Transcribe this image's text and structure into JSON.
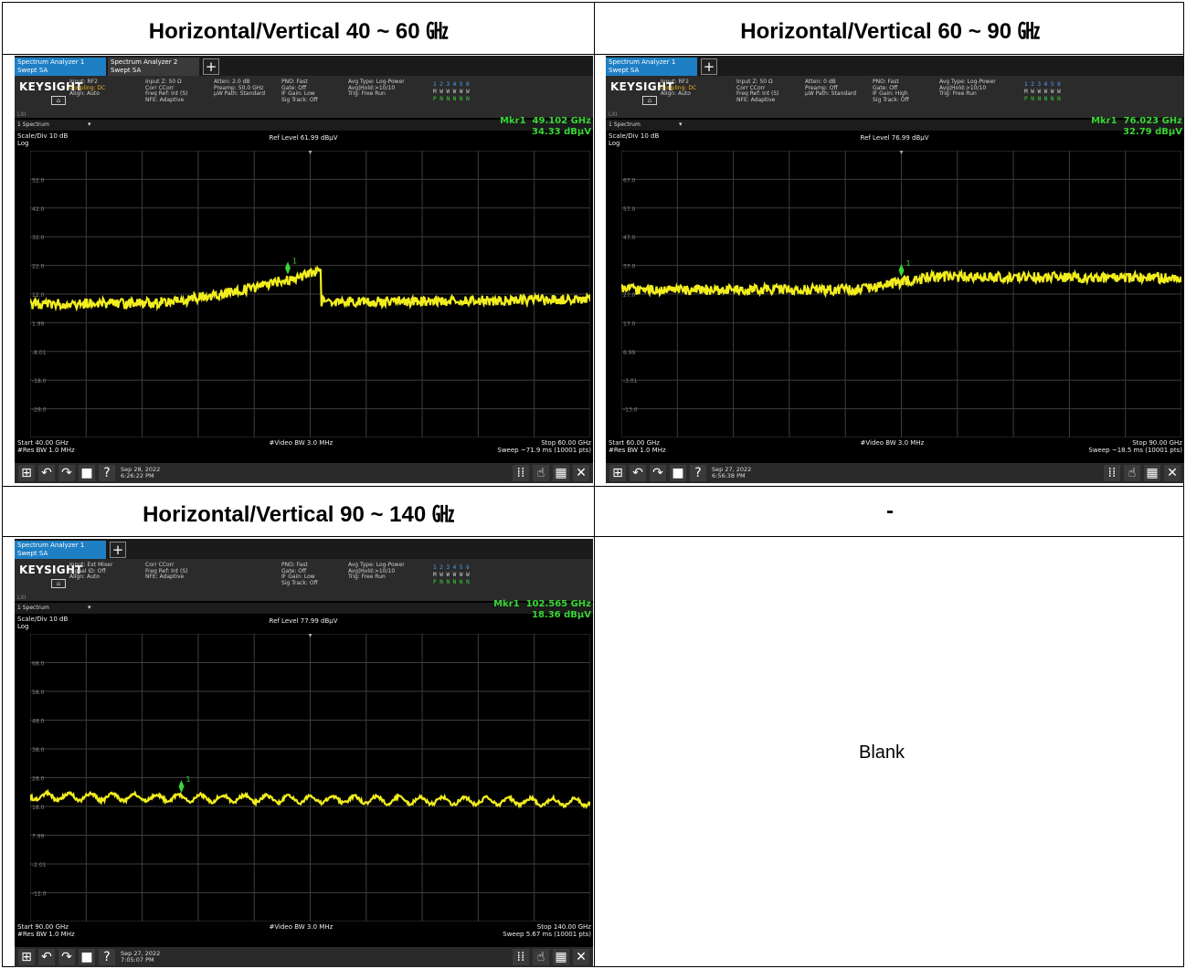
{
  "headers": {
    "h1": "Horizontal/Vertical 40 ~ 60 ㎓",
    "h2": "Horizontal/Vertical 60 ~ 90 ㎓",
    "h3": "Horizontal/Vertical 90 ~ 140 ㎓",
    "h4": "-"
  },
  "blank_text": "Blank",
  "analyzers": [
    {
      "tab1": "Spectrum Analyzer 1\nSwept SA",
      "tab2": "Spectrum Analyzer 2\nSwept SA",
      "logo": "KEYSIGHT",
      "col1": "Input: RF2\nCoupling: DC\nAlign: Auto",
      "col2": "Input Z: 50 Ω\nCorr CCorr\nFreq Ref: Int (S)\nNFE: Adaptive",
      "col3": "Atten: 2.0 dB\nPreamp: 50.0 GHz\nµW Path: Standard",
      "col4": "PNO: Fast\nGate: Off\nIF Gain: Low\nSig Track: Off",
      "col5": "Avg Type: Log-Power\nAvg|Hold:>10/10\nTrig: Free Run",
      "trace_nums": "1 2 3 4 5 6",
      "trace_w": "M W W W W W",
      "trace_p": "P N N N N N",
      "lw": "LXI",
      "window": "1 Spectrum",
      "scale": "Scale/Div 10 dB\nLog",
      "ref": "Ref Level 61.99 dBµV",
      "mkr_freq": "Mkr1  49.102 GHz",
      "mkr_amp": "34.33 dBµV",
      "ylabels": [
        "52.0",
        "42.0",
        "32.0",
        "22.0",
        "12.0",
        "1.99",
        "-8.01",
        "-18.0",
        "-28.0"
      ],
      "start": "Start 40.00 GHz\n#Res BW 1.0 MHz",
      "vbw": "#Video BW 3.0 MHz",
      "stop": "Stop 60.00 GHz\nSweep ~71.9 ms (10001 pts)",
      "date": "Sep 28, 2022\n6:26:22 PM"
    },
    {
      "tab1": "Spectrum Analyzer 1\nSwept SA",
      "logo": "KEYSIGHT",
      "col1": "Input: RF2\nCoupling: DC\nAlign: Auto",
      "col2": "Input Z: 50 Ω\nCorr CCorr\nFreq Ref: Int (S)\nNFE: Adaptive",
      "col3": "Atten: 0 dB\nPreamp: Off\nµW Path: Standard",
      "col4": "PNO: Fast\nGate: Off\nIF Gain: High\nSig Track: Off",
      "col5": "Avg Type: Log-Power\nAvg|Hold:>10/10\nTrig: Free Run",
      "trace_nums": "1 2 3 4 5 6",
      "trace_w": "M W W W W W",
      "trace_p": "P N N N N N",
      "lw": "LXI",
      "window": "1 Spectrum",
      "scale": "Scale/Div 10 dB\nLog",
      "ref": "Ref Level 76.99 dBµV",
      "mkr_freq": "Mkr1  76.023 GHz",
      "mkr_amp": "32.79 dBµV",
      "ylabels": [
        "67.0",
        "57.0",
        "47.0",
        "37.0",
        "27.0",
        "17.0",
        "6.99",
        "-3.01",
        "-13.0"
      ],
      "start": "Start 60.00 GHz\n#Res BW 1.0 MHz",
      "vbw": "#Video BW 3.0 MHz",
      "stop": "Stop 90.00 GHz\nSweep ~18.5 ms (10001 pts)",
      "date": "Sep 27, 2022\n6:56:38 PM"
    },
    {
      "tab1": "Spectrum Analyzer 1\nSwept SA",
      "logo": "KEYSIGHT",
      "col1": "Input: Ext Mixer\nSignal ID: Off\nAlign: Auto",
      "col2": "Corr CCorr\nFreq Ref: Int (S)\nNFE: Adaptive",
      "col3": "",
      "col4": "PNO: Fast\nGate: Off\nIF Gain: Low\nSig Track: Off",
      "col5": "Avg Type: Log-Power\nAvg|Hold:>10/10\nTrig: Free Run",
      "trace_nums": "1 2 3 4 5 6",
      "trace_w": "M W W W W W",
      "trace_p": "P N N N N N",
      "lw": "LXI",
      "window": "1 Spectrum",
      "scale": "Scale/Div 10 dB\nLog",
      "ref": "Ref Level 77.99 dBµV",
      "mkr_freq": "Mkr1  102.565 GHz",
      "mkr_amp": "18.36 dBµV",
      "ylabels": [
        "68.0",
        "58.0",
        "48.0",
        "38.0",
        "28.0",
        "18.0",
        "7.99",
        "-2.01",
        "-12.0"
      ],
      "start": "Start 90.00 GHz\n#Res BW 1.0 MHz",
      "vbw": "#Video BW 3.0 MHz",
      "stop": "Stop 140.00 GHz\nSweep 5.67 ms (10001 pts)",
      "date": "Sep 27, 2022\n7:05:07 PM"
    }
  ],
  "colors": {
    "trace": "#f2ee1e",
    "marker": "#39d635",
    "grid": "#3c3c3c",
    "tab_active": "#1f7fc4"
  },
  "icons": [
    "windows-icon",
    "undo-icon",
    "redo-icon",
    "file-icon",
    "help-icon",
    "keypad-icon",
    "touch-icon",
    "layout-icon",
    "fullscreen-icon"
  ]
}
